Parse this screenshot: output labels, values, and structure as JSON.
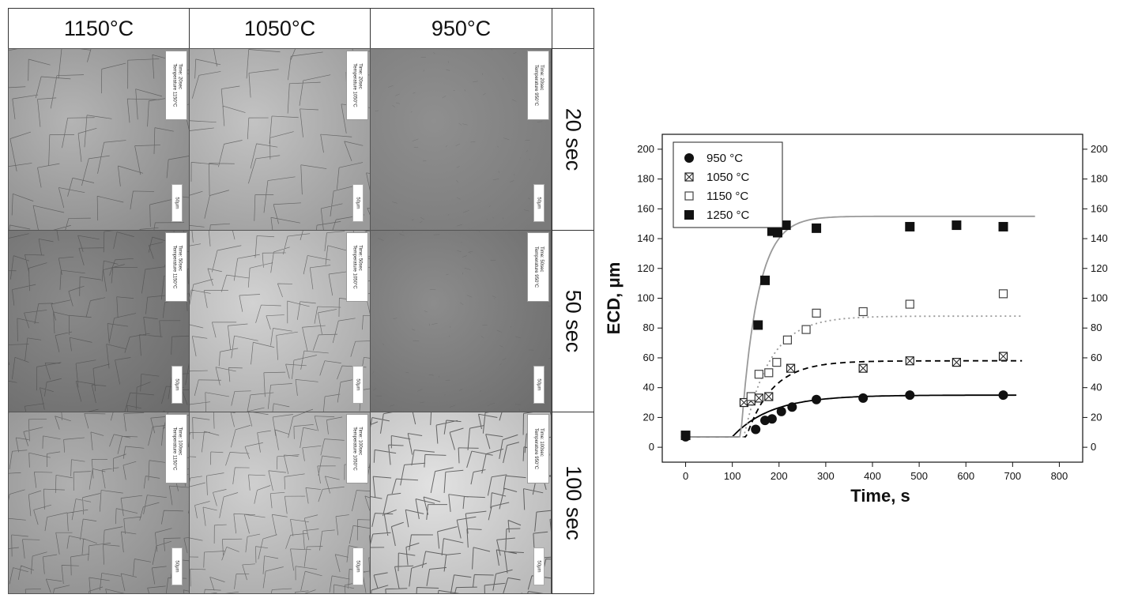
{
  "grid": {
    "columns": [
      "1150°C",
      "1050°C",
      "950°C"
    ],
    "rows": [
      "20 sec",
      "50 sec",
      "100 sec"
    ],
    "stamps": [
      [
        "Time: 20sec\nTemperature 1150°C",
        "Time: 20sec\nTemperature 1050°C",
        "Time: 20sec\nTemperature 950°C"
      ],
      [
        "Time: 50sec\nTemperature 1150°C",
        "Time: 50sec\nTemperature 1050°C",
        "Time: 50sec\nTemperature 950°C"
      ],
      [
        "Time: 100sec\nTemperature 1150°C",
        "Time: 100sec\nTemperature 1050°C",
        "Time: 100sec\nTemperature 950°C"
      ]
    ],
    "scale_label": "50μm"
  },
  "chart_data": {
    "type": "scatter",
    "xlabel": "Time, s",
    "ylabel": "ECD, μm",
    "xlim": [
      -50,
      850
    ],
    "ylim": [
      -10,
      210
    ],
    "xticks": [
      0,
      100,
      200,
      300,
      400,
      500,
      600,
      700,
      800
    ],
    "yticks": [
      0,
      20,
      40,
      60,
      80,
      100,
      120,
      140,
      160,
      180,
      200
    ],
    "right_yticks": [
      0,
      20,
      40,
      60,
      80,
      100,
      120,
      140,
      160,
      180,
      200
    ],
    "legend_position": "top-left",
    "series": [
      {
        "name": "950 °C",
        "marker": "filled-circle",
        "x": [
          0,
          150,
          170,
          185,
          205,
          228,
          280,
          380,
          480,
          680
        ],
        "y": [
          7,
          12,
          18,
          19,
          24,
          27,
          32,
          33,
          35,
          35
        ],
        "fit": {
          "style": "solid",
          "color": "#000000",
          "x_end": 710,
          "plateau": 35,
          "onset": 100
        }
      },
      {
        "name": "1050 °C",
        "marker": "crossed-square",
        "x": [
          125,
          140,
          157,
          178,
          225,
          380,
          480,
          580,
          680
        ],
        "y": [
          30,
          31,
          33,
          34,
          53,
          53,
          58,
          57,
          61
        ],
        "fit": {
          "style": "dashed",
          "color": "#000000",
          "x_end": 720,
          "plateau": 58,
          "onset": 130
        }
      },
      {
        "name": "1150 °C",
        "marker": "open-square",
        "x": [
          140,
          157,
          178,
          195,
          218,
          258,
          280,
          380,
          480,
          680
        ],
        "y": [
          34,
          49,
          50,
          57,
          72,
          79,
          90,
          91,
          96,
          103
        ],
        "fit": {
          "style": "dotted",
          "color": "#999999",
          "x_end": 720,
          "plateau": 88,
          "onset": 125
        }
      },
      {
        "name": "1250 °C",
        "marker": "filled-square",
        "x": [
          0,
          155,
          170,
          185,
          197,
          215,
          280,
          480,
          580,
          680
        ],
        "y": [
          8,
          82,
          112,
          145,
          144,
          149,
          147,
          148,
          149,
          148
        ],
        "fit": {
          "style": "solid",
          "color": "#999999",
          "x_end": 750,
          "plateau": 155,
          "onset": 118
        }
      }
    ]
  }
}
